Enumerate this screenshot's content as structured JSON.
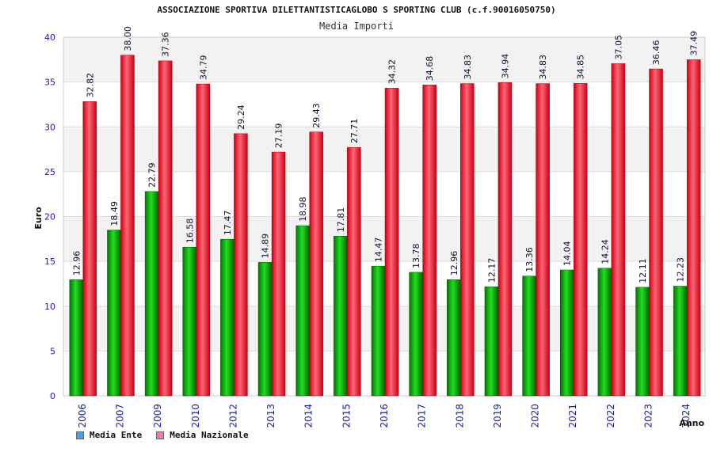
{
  "header": {
    "title": "ASSOCIAZIONE SPORTIVA DILETTANTISTICAGLOBO S SPORTING CLUB (c.f.90016050750)",
    "subtitle": "Media Importi"
  },
  "colors": {
    "ente": "#11aa11",
    "nazionale": "#ee2233",
    "ente_legend": "#5b9bd5",
    "nazionale_legend": "#e57fae",
    "axis_text": "#1a1aa6",
    "band": "#f2f2f2"
  },
  "chart_data": {
    "type": "bar",
    "title": "Media Importi",
    "xlabel": "Anno",
    "ylabel": "Euro",
    "ylim": [
      0,
      40
    ],
    "yticks": [
      0,
      5,
      10,
      15,
      20,
      25,
      30,
      35,
      40
    ],
    "grid": true,
    "legend_position": "bottom-left",
    "categories": [
      "2006",
      "2007",
      "2009",
      "2010",
      "2012",
      "2013",
      "2014",
      "2015",
      "2016",
      "2017",
      "2018",
      "2019",
      "2020",
      "2021",
      "2022",
      "2023",
      "2024"
    ],
    "series": [
      {
        "name": "Media Ente",
        "values": [
          12.96,
          18.49,
          22.79,
          16.58,
          17.47,
          14.89,
          18.98,
          17.81,
          14.47,
          13.78,
          12.96,
          12.17,
          13.36,
          14.04,
          14.24,
          12.11,
          12.23
        ],
        "labels": [
          "12.96",
          "18.49",
          "22.79",
          "16.58",
          "17.47",
          "14.89",
          "18.98",
          "17.81",
          "14.47",
          "13.78",
          "12.96",
          "12.17",
          "13.36",
          "14.04",
          "14.24",
          "12.11",
          "12.23"
        ]
      },
      {
        "name": "Media Nazionale",
        "values": [
          32.82,
          38.0,
          37.36,
          34.79,
          29.24,
          27.19,
          29.43,
          27.71,
          34.32,
          34.68,
          34.83,
          34.94,
          34.83,
          34.85,
          37.05,
          36.46,
          37.49
        ],
        "labels": [
          "32.82",
          "38.00",
          "37.36",
          "34.79",
          "29.24",
          "27.19",
          "29.43",
          "27.71",
          "34.32",
          "34.68",
          "34.83",
          "34.94",
          "34.83",
          "34.85",
          "37.05",
          "36.46",
          "37.49"
        ]
      }
    ]
  }
}
